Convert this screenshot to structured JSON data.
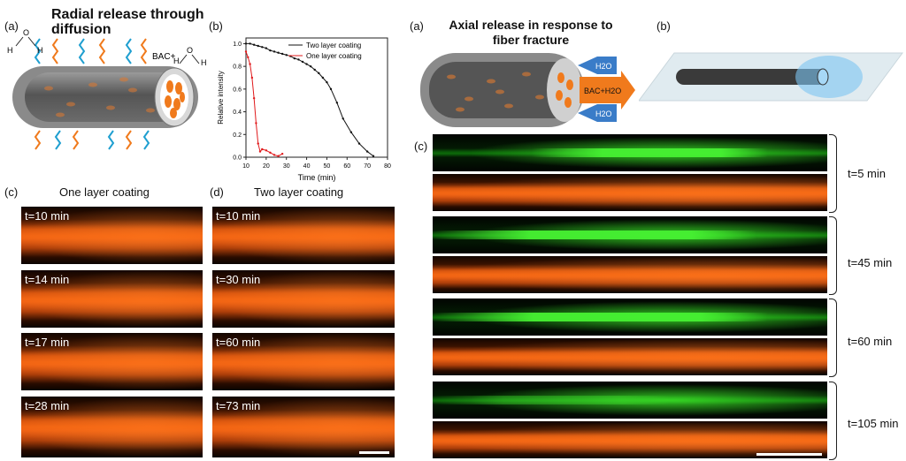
{
  "left": {
    "panel_a_label": "(a)",
    "heading": "Radial release through diffusion",
    "bac_label": "BAC+",
    "h_label": "H",
    "o_label": "O",
    "panel_b_label": "(b)",
    "panel_c_label": "(c)",
    "panel_c_title": "One layer coating",
    "panel_d_label": "(d)",
    "panel_d_title": "Two layer coating",
    "c_times": [
      "t=10 min",
      "t=14 min",
      "t=17 min",
      "t=28 min"
    ],
    "d_times": [
      "t=10 min",
      "t=30 min",
      "t=60 min",
      "t=73 min"
    ]
  },
  "right": {
    "panel_a_label": "(a)",
    "heading": "Axial release in response to fiber fracture",
    "h2o": "H2O",
    "bac_h2o": "BAC+H2O",
    "panel_b_label": "(b)",
    "panel_c_label": "(c)",
    "times": [
      "t=5 min",
      "t=45 min",
      "t=60 min",
      "t=105 min"
    ]
  },
  "chart_data": {
    "type": "line",
    "xlabel": "Time (min)",
    "ylabel": "Relative intensity",
    "xlim": [
      10,
      80
    ],
    "ylim": [
      0,
      1.05
    ],
    "xticks": [
      "10",
      "20",
      "30",
      "40",
      "50",
      "60",
      "70",
      "80"
    ],
    "yticks": [
      "0.0",
      "0.2",
      "0.4",
      "0.6",
      "0.8",
      "1.0"
    ],
    "legend_position": "top-right",
    "series": [
      {
        "name": "Two layer coating",
        "color": "#111111",
        "x": [
          10,
          12,
          14,
          16,
          18,
          20,
          22,
          24,
          26,
          28,
          30,
          32,
          34,
          36,
          38,
          40,
          42,
          44,
          46,
          48,
          50,
          52,
          55,
          58,
          62,
          66,
          70,
          73
        ],
        "y": [
          1.0,
          1.0,
          0.99,
          0.98,
          0.97,
          0.96,
          0.94,
          0.93,
          0.92,
          0.91,
          0.9,
          0.89,
          0.87,
          0.86,
          0.84,
          0.82,
          0.8,
          0.77,
          0.74,
          0.7,
          0.66,
          0.6,
          0.48,
          0.34,
          0.22,
          0.12,
          0.05,
          0.01
        ]
      },
      {
        "name": "One layer coating",
        "color": "#e0191b",
        "x": [
          10,
          11,
          12,
          13,
          14,
          15,
          16,
          17,
          18,
          20,
          22,
          24,
          26,
          28
        ],
        "y": [
          0.93,
          0.88,
          0.82,
          0.7,
          0.52,
          0.3,
          0.12,
          0.05,
          0.07,
          0.06,
          0.04,
          0.02,
          0.01,
          0.03
        ]
      }
    ]
  }
}
